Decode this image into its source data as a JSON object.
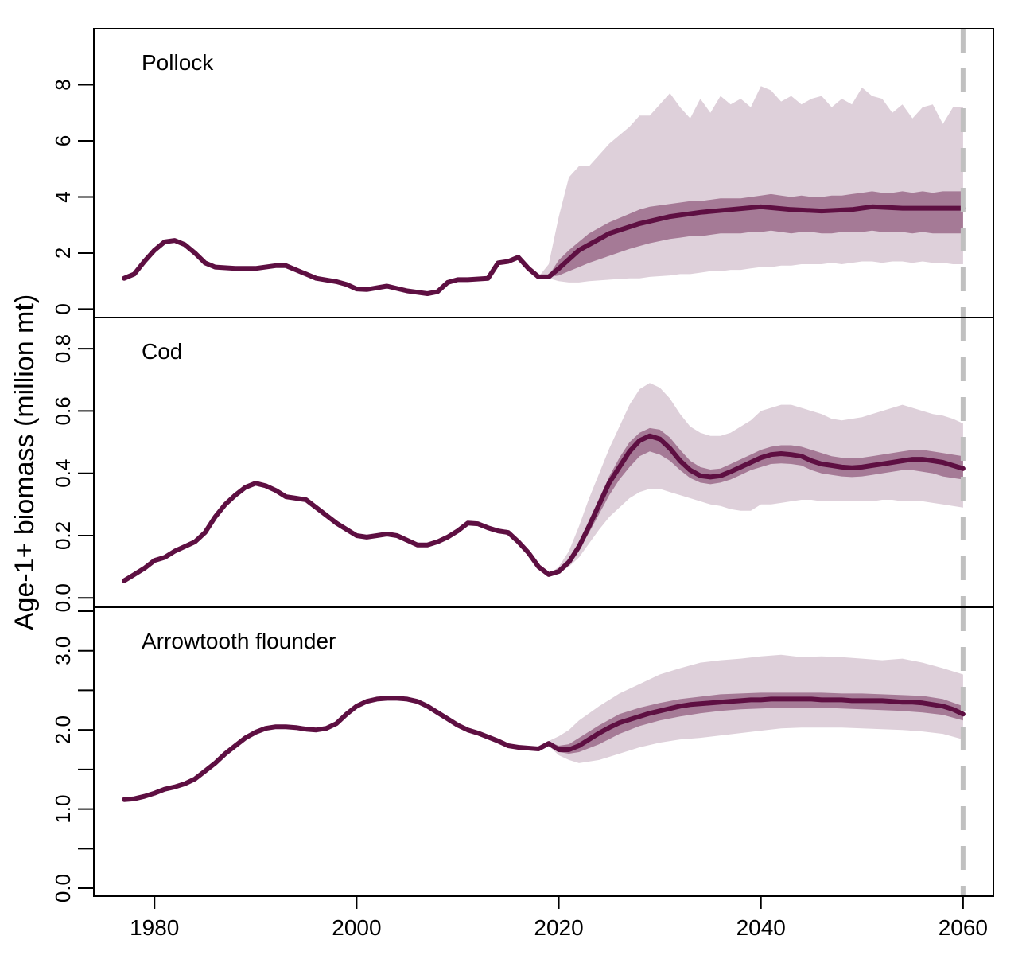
{
  "chart_data": {
    "type": "line",
    "ylabel": "Age-1+ biomass (million mt)",
    "x_axis": {
      "ticks": [
        1980,
        2000,
        2020,
        2040,
        2060
      ],
      "range": [
        1974,
        2063
      ]
    },
    "reference_line": {
      "x": 2060,
      "color": "#c0c0c0",
      "style": "dashed"
    },
    "colors": {
      "line": "#5e0f42",
      "inner_band": "#a57a96",
      "outer_band": "#ded0da"
    },
    "panels": [
      {
        "label": "Pollock",
        "ylim": [
          -0.3,
          10.0
        ],
        "yticks": [
          0,
          2,
          4,
          6,
          8
        ],
        "ytick_labels": [
          "0",
          "2",
          "4",
          "6",
          "8"
        ],
        "years": [
          1977,
          1978,
          1979,
          1980,
          1981,
          1982,
          1983,
          1984,
          1985,
          1986,
          1988,
          1990,
          1992,
          1993,
          1994,
          1996,
          1998,
          1999,
          2000,
          2001,
          2003,
          2005,
          2007,
          2008,
          2009,
          2010,
          2011,
          2013,
          2014,
          2015,
          2016,
          2017,
          2018,
          2019,
          2020,
          2022,
          2025,
          2028,
          2031,
          2034,
          2037,
          2040,
          2043,
          2046,
          2049,
          2051,
          2054,
          2057,
          2060
        ],
        "median": [
          1.1,
          1.25,
          1.7,
          2.1,
          2.4,
          2.45,
          2.3,
          2.0,
          1.65,
          1.5,
          1.45,
          1.45,
          1.55,
          1.55,
          1.4,
          1.1,
          0.98,
          0.88,
          0.72,
          0.7,
          0.82,
          0.65,
          0.55,
          0.62,
          0.95,
          1.05,
          1.05,
          1.1,
          1.65,
          1.7,
          1.85,
          1.45,
          1.15,
          1.15,
          1.45,
          2.1,
          2.7,
          3.05,
          3.3,
          3.45,
          3.55,
          3.65,
          3.55,
          3.5,
          3.55,
          3.65,
          3.6,
          3.6,
          3.6
        ],
        "band_years": [
          2018,
          2019,
          2020,
          2021,
          2022,
          2023,
          2025,
          2027,
          2028,
          2029,
          2031,
          2032,
          2033,
          2034,
          2035,
          2036,
          2037,
          2038,
          2039,
          2040,
          2041,
          2042,
          2043,
          2044,
          2045,
          2046,
          2047,
          2048,
          2049,
          2050,
          2051,
          2052,
          2053,
          2054,
          2055,
          2056,
          2057,
          2058,
          2059,
          2060
        ],
        "inner_low": [
          1.15,
          1.15,
          1.2,
          1.35,
          1.5,
          1.65,
          1.9,
          2.15,
          2.25,
          2.35,
          2.5,
          2.55,
          2.6,
          2.6,
          2.65,
          2.7,
          2.7,
          2.7,
          2.75,
          2.75,
          2.8,
          2.75,
          2.7,
          2.75,
          2.75,
          2.7,
          2.7,
          2.75,
          2.75,
          2.75,
          2.8,
          2.75,
          2.75,
          2.75,
          2.7,
          2.75,
          2.7,
          2.7,
          2.7,
          2.7
        ],
        "inner_high": [
          1.15,
          1.2,
          1.75,
          2.1,
          2.4,
          2.7,
          3.1,
          3.4,
          3.55,
          3.65,
          3.75,
          3.8,
          3.85,
          3.85,
          3.9,
          3.95,
          3.95,
          3.95,
          4.0,
          4.05,
          4.1,
          4.05,
          4.0,
          4.05,
          4.0,
          4.0,
          4.05,
          4.05,
          4.1,
          4.15,
          4.2,
          4.15,
          4.15,
          4.2,
          4.15,
          4.2,
          4.15,
          4.2,
          4.2,
          4.2
        ],
        "outer_low": [
          1.15,
          1.1,
          1.0,
          0.95,
          0.95,
          1.0,
          1.05,
          1.1,
          1.1,
          1.15,
          1.2,
          1.25,
          1.25,
          1.3,
          1.35,
          1.35,
          1.4,
          1.4,
          1.45,
          1.5,
          1.5,
          1.55,
          1.55,
          1.6,
          1.6,
          1.6,
          1.65,
          1.6,
          1.65,
          1.7,
          1.7,
          1.65,
          1.7,
          1.7,
          1.65,
          1.7,
          1.65,
          1.65,
          1.6,
          1.6
        ],
        "outer_high": [
          1.15,
          1.6,
          3.3,
          4.7,
          5.1,
          5.1,
          5.9,
          6.5,
          6.9,
          6.9,
          7.7,
          7.2,
          6.8,
          7.5,
          7.0,
          7.6,
          7.3,
          7.5,
          7.2,
          7.95,
          7.8,
          7.4,
          7.6,
          7.3,
          7.5,
          7.6,
          7.2,
          7.5,
          7.3,
          7.9,
          7.6,
          7.5,
          7.0,
          7.3,
          6.8,
          7.2,
          7.3,
          6.6,
          7.2,
          7.2
        ]
      },
      {
        "label": "Cod",
        "ylim": [
          -0.03,
          0.9
        ],
        "yticks": [
          0.0,
          0.2,
          0.4,
          0.6,
          0.8
        ],
        "ytick_labels": [
          "0.0",
          "0.2",
          "0.4",
          "0.6",
          "0.8"
        ],
        "years": [
          1977,
          1978,
          1979,
          1980,
          1981,
          1982,
          1983,
          1984,
          1985,
          1986,
          1987,
          1988,
          1989,
          1990,
          1991,
          1992,
          1993,
          1994,
          1995,
          1996,
          1997,
          1998,
          1999,
          2000,
          2001,
          2002,
          2003,
          2004,
          2005,
          2006,
          2007,
          2008,
          2009,
          2010,
          2011,
          2012,
          2013,
          2014,
          2015,
          2016,
          2017,
          2018,
          2019,
          2020,
          2021,
          2022,
          2023,
          2024,
          2025,
          2026,
          2027,
          2028,
          2029,
          2030,
          2031,
          2032,
          2033,
          2034,
          2035,
          2036,
          2037,
          2038,
          2039,
          2040,
          2041,
          2042,
          2043,
          2044,
          2045,
          2046,
          2047,
          2048,
          2049,
          2050,
          2051,
          2052,
          2053,
          2054,
          2055,
          2056,
          2057,
          2058,
          2059,
          2060
        ],
        "median": [
          0.055,
          0.075,
          0.095,
          0.12,
          0.13,
          0.15,
          0.165,
          0.18,
          0.21,
          0.26,
          0.3,
          0.33,
          0.355,
          0.368,
          0.36,
          0.345,
          0.325,
          0.32,
          0.315,
          0.29,
          0.265,
          0.24,
          0.22,
          0.2,
          0.195,
          0.2,
          0.205,
          0.2,
          0.185,
          0.17,
          0.17,
          0.18,
          0.195,
          0.215,
          0.24,
          0.238,
          0.225,
          0.215,
          0.21,
          0.18,
          0.145,
          0.1,
          0.075,
          0.085,
          0.115,
          0.165,
          0.23,
          0.3,
          0.37,
          0.42,
          0.47,
          0.505,
          0.52,
          0.51,
          0.48,
          0.44,
          0.41,
          0.392,
          0.388,
          0.392,
          0.405,
          0.42,
          0.435,
          0.45,
          0.46,
          0.463,
          0.46,
          0.455,
          0.44,
          0.43,
          0.425,
          0.42,
          0.418,
          0.42,
          0.425,
          0.43,
          0.435,
          0.44,
          0.445,
          0.445,
          0.44,
          0.435,
          0.425,
          0.415
        ],
        "band_years": [
          2019,
          2020,
          2021,
          2022,
          2023,
          2024,
          2025,
          2026,
          2027,
          2028,
          2029,
          2030,
          2031,
          2032,
          2033,
          2034,
          2035,
          2036,
          2037,
          2038,
          2039,
          2040,
          2041,
          2042,
          2043,
          2044,
          2045,
          2046,
          2047,
          2048,
          2049,
          2050,
          2051,
          2052,
          2053,
          2054,
          2055,
          2056,
          2057,
          2058,
          2059,
          2060
        ],
        "inner_low": [
          0.075,
          0.085,
          0.11,
          0.155,
          0.21,
          0.27,
          0.33,
          0.38,
          0.42,
          0.455,
          0.47,
          0.46,
          0.44,
          0.41,
          0.385,
          0.37,
          0.365,
          0.37,
          0.38,
          0.395,
          0.41,
          0.42,
          0.43,
          0.432,
          0.43,
          0.425,
          0.41,
          0.4,
          0.395,
          0.39,
          0.388,
          0.39,
          0.395,
          0.4,
          0.405,
          0.41,
          0.41,
          0.405,
          0.4,
          0.39,
          0.385,
          0.38
        ],
        "inner_high": [
          0.075,
          0.09,
          0.125,
          0.18,
          0.25,
          0.32,
          0.39,
          0.45,
          0.5,
          0.53,
          0.545,
          0.54,
          0.515,
          0.475,
          0.44,
          0.42,
          0.412,
          0.415,
          0.43,
          0.445,
          0.46,
          0.475,
          0.485,
          0.49,
          0.49,
          0.485,
          0.475,
          0.465,
          0.455,
          0.45,
          0.448,
          0.45,
          0.455,
          0.46,
          0.465,
          0.47,
          0.475,
          0.475,
          0.47,
          0.465,
          0.46,
          0.455
        ],
        "outer_low": [
          0.075,
          0.08,
          0.1,
          0.13,
          0.175,
          0.22,
          0.26,
          0.29,
          0.32,
          0.34,
          0.35,
          0.35,
          0.34,
          0.33,
          0.32,
          0.31,
          0.3,
          0.295,
          0.285,
          0.28,
          0.28,
          0.3,
          0.3,
          0.305,
          0.31,
          0.315,
          0.315,
          0.31,
          0.31,
          0.31,
          0.31,
          0.31,
          0.31,
          0.315,
          0.315,
          0.31,
          0.31,
          0.31,
          0.305,
          0.3,
          0.295,
          0.29
        ],
        "outer_high": [
          0.075,
          0.1,
          0.15,
          0.23,
          0.32,
          0.4,
          0.48,
          0.55,
          0.62,
          0.67,
          0.69,
          0.675,
          0.64,
          0.59,
          0.55,
          0.53,
          0.52,
          0.52,
          0.53,
          0.55,
          0.57,
          0.6,
          0.61,
          0.62,
          0.62,
          0.61,
          0.6,
          0.59,
          0.575,
          0.57,
          0.575,
          0.58,
          0.59,
          0.6,
          0.61,
          0.62,
          0.61,
          0.6,
          0.59,
          0.585,
          0.575,
          0.56
        ]
      },
      {
        "label": "Arrowtooth flounder",
        "ylim": [
          -0.1,
          3.55
        ],
        "yticks": [
          0.0,
          0.5,
          1.0,
          1.5,
          2.0,
          2.5,
          3.0,
          3.5
        ],
        "ytick_labels": [
          "0.0",
          "",
          "1.0",
          "",
          "2.0",
          "",
          "3.0",
          ""
        ],
        "years": [
          1977,
          1978,
          1979,
          1980,
          1981,
          1982,
          1983,
          1984,
          1985,
          1986,
          1987,
          1988,
          1989,
          1990,
          1991,
          1992,
          1993,
          1994,
          1995,
          1996,
          1997,
          1998,
          1999,
          2000,
          2001,
          2002,
          2003,
          2004,
          2005,
          2006,
          2007,
          2008,
          2009,
          2010,
          2011,
          2012,
          2013,
          2014,
          2015,
          2016,
          2017,
          2018,
          2019,
          2020,
          2021,
          2022,
          2023,
          2024,
          2025,
          2026,
          2027,
          2028,
          2029,
          2030,
          2031,
          2032,
          2033,
          2034,
          2035,
          2036,
          2037,
          2038,
          2039,
          2040,
          2041,
          2042,
          2043,
          2044,
          2045,
          2046,
          2047,
          2048,
          2049,
          2050,
          2051,
          2052,
          2053,
          2054,
          2055,
          2056,
          2057,
          2058,
          2059,
          2060
        ],
        "median": [
          1.12,
          1.13,
          1.16,
          1.2,
          1.25,
          1.28,
          1.32,
          1.38,
          1.48,
          1.58,
          1.7,
          1.8,
          1.9,
          1.97,
          2.02,
          2.04,
          2.04,
          2.03,
          2.01,
          2.0,
          2.02,
          2.08,
          2.2,
          2.3,
          2.36,
          2.39,
          2.4,
          2.4,
          2.39,
          2.36,
          2.3,
          2.22,
          2.14,
          2.06,
          2.0,
          1.96,
          1.91,
          1.86,
          1.8,
          1.78,
          1.77,
          1.76,
          1.83,
          1.75,
          1.75,
          1.8,
          1.88,
          1.96,
          2.03,
          2.09,
          2.13,
          2.17,
          2.21,
          2.24,
          2.27,
          2.3,
          2.32,
          2.33,
          2.34,
          2.35,
          2.36,
          2.37,
          2.38,
          2.38,
          2.39,
          2.39,
          2.39,
          2.39,
          2.39,
          2.38,
          2.38,
          2.38,
          2.37,
          2.37,
          2.37,
          2.37,
          2.36,
          2.35,
          2.35,
          2.34,
          2.32,
          2.3,
          2.26,
          2.2
        ],
        "band_years": [
          2019,
          2020,
          2021,
          2022,
          2024,
          2026,
          2028,
          2030,
          2032,
          2034,
          2036,
          2038,
          2040,
          2042,
          2044,
          2046,
          2048,
          2050,
          2052,
          2054,
          2056,
          2058,
          2060
        ],
        "inner_low": [
          1.8,
          1.72,
          1.7,
          1.72,
          1.82,
          1.95,
          2.05,
          2.12,
          2.17,
          2.21,
          2.24,
          2.26,
          2.27,
          2.28,
          2.28,
          2.28,
          2.27,
          2.26,
          2.25,
          2.24,
          2.22,
          2.19,
          2.12
        ],
        "inner_high": [
          1.85,
          1.8,
          1.82,
          1.9,
          2.06,
          2.2,
          2.28,
          2.34,
          2.39,
          2.42,
          2.45,
          2.46,
          2.47,
          2.47,
          2.47,
          2.47,
          2.46,
          2.46,
          2.45,
          2.44,
          2.43,
          2.39,
          2.3
        ],
        "outer_low": [
          1.8,
          1.68,
          1.62,
          1.58,
          1.62,
          1.7,
          1.78,
          1.84,
          1.88,
          1.9,
          1.93,
          1.96,
          1.99,
          2.02,
          2.03,
          2.03,
          2.03,
          2.02,
          2.01,
          2.0,
          1.98,
          1.95,
          1.88
        ],
        "outer_high": [
          1.86,
          1.92,
          2.0,
          2.12,
          2.3,
          2.46,
          2.58,
          2.7,
          2.78,
          2.85,
          2.88,
          2.9,
          2.93,
          2.95,
          2.92,
          2.93,
          2.92,
          2.9,
          2.88,
          2.9,
          2.85,
          2.78,
          2.7
        ]
      }
    ]
  }
}
